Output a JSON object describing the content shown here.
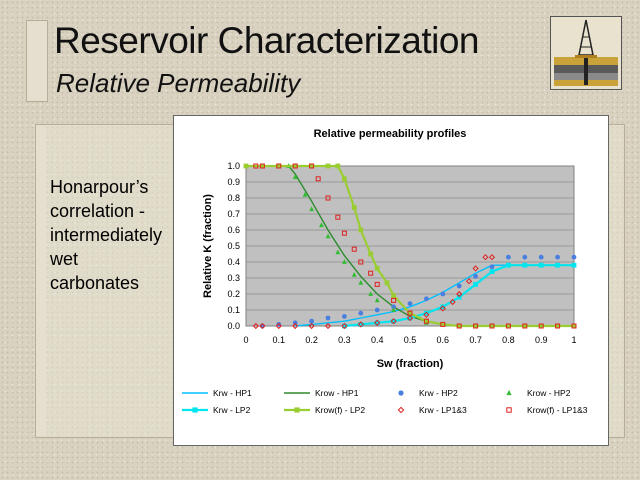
{
  "slide": {
    "title": "Reservoir Characterization",
    "subtitle": "Relative Permeability",
    "body_lines": [
      "Honarpour’s",
      "correlation -",
      "intermediately",
      "wet",
      "carbonates"
    ]
  },
  "chart_data": {
    "type": "scatter",
    "title": "Relative permeability profiles",
    "xlabel": "Sw (fraction)",
    "ylabel": "Relative K (fraction)",
    "xlim": [
      0,
      1
    ],
    "ylim": [
      0,
      1
    ],
    "x_ticks": [
      "0",
      "0.1",
      "0.2",
      "0.3",
      "0.4",
      "0.5",
      "0.6",
      "0.7",
      "0.8",
      "0.9",
      "1"
    ],
    "y_ticks": [
      "0.0",
      "0.1",
      "0.2",
      "0.3",
      "0.4",
      "0.5",
      "0.6",
      "0.7",
      "0.8",
      "0.9",
      "1.0"
    ],
    "grid": true,
    "legend_position": "bottom",
    "series": [
      {
        "name": "Krw - HP1",
        "style": "line",
        "color": "#00bfff",
        "x": [
          0.15,
          0.2,
          0.25,
          0.3,
          0.35,
          0.4,
          0.45,
          0.5,
          0.55,
          0.6,
          0.65,
          0.7,
          0.75,
          0.8,
          0.85,
          0.9,
          0.95,
          1.0
        ],
        "y": [
          0.0,
          0.01,
          0.02,
          0.03,
          0.05,
          0.07,
          0.09,
          0.12,
          0.16,
          0.21,
          0.27,
          0.33,
          0.38,
          0.38,
          0.38,
          0.38,
          0.38,
          0.38
        ]
      },
      {
        "name": "Krow - HP1",
        "style": "line",
        "color": "#2e8b2e",
        "x": [
          0.13,
          0.15,
          0.2,
          0.25,
          0.3,
          0.35,
          0.4,
          0.45,
          0.5,
          0.55,
          0.6,
          0.65,
          0.7,
          0.75,
          0.8,
          0.85,
          0.9,
          0.95,
          1.0
        ],
        "y": [
          1.0,
          0.95,
          0.78,
          0.6,
          0.44,
          0.31,
          0.2,
          0.12,
          0.06,
          0.03,
          0.01,
          0.0,
          0.0,
          0.0,
          0.0,
          0.0,
          0.0,
          0.0,
          0.0
        ]
      },
      {
        "name": "Krw - HP2",
        "style": "marker",
        "marker": "circle",
        "color": "#4a7fe0",
        "x": [
          0.05,
          0.1,
          0.15,
          0.2,
          0.25,
          0.3,
          0.35,
          0.4,
          0.45,
          0.5,
          0.55,
          0.6,
          0.65,
          0.7,
          0.75,
          0.8,
          0.85,
          0.9,
          0.95,
          1.0
        ],
        "y": [
          0.0,
          0.01,
          0.02,
          0.03,
          0.05,
          0.06,
          0.08,
          0.1,
          0.12,
          0.14,
          0.17,
          0.2,
          0.25,
          0.31,
          0.37,
          0.43,
          0.43,
          0.43,
          0.43,
          0.43
        ]
      },
      {
        "name": "Krow - HP2",
        "style": "marker",
        "marker": "triangle",
        "color": "#33bb33",
        "x": [
          0.13,
          0.15,
          0.18,
          0.2,
          0.23,
          0.25,
          0.28,
          0.3,
          0.33,
          0.35,
          0.38,
          0.4,
          0.45,
          0.5,
          0.55
        ],
        "y": [
          1.0,
          0.93,
          0.82,
          0.73,
          0.63,
          0.56,
          0.46,
          0.4,
          0.32,
          0.27,
          0.2,
          0.16,
          0.1,
          0.05,
          0.02
        ]
      },
      {
        "name": "Krw - LP2",
        "style": "line-marker",
        "marker": "square",
        "color": "#00e5ee",
        "x": [
          0.3,
          0.35,
          0.4,
          0.45,
          0.5,
          0.55,
          0.6,
          0.65,
          0.7,
          0.75,
          0.8,
          0.85,
          0.9,
          0.95,
          1.0
        ],
        "y": [
          0.0,
          0.01,
          0.02,
          0.03,
          0.05,
          0.08,
          0.12,
          0.18,
          0.26,
          0.34,
          0.38,
          0.38,
          0.38,
          0.38,
          0.38
        ]
      },
      {
        "name": "Krow(f) - LP2",
        "style": "line-marker",
        "marker": "square",
        "color": "#9acd32",
        "x": [
          0.0,
          0.05,
          0.1,
          0.15,
          0.2,
          0.25,
          0.28,
          0.3,
          0.33,
          0.35,
          0.38,
          0.4,
          0.43,
          0.45,
          0.5,
          0.55,
          0.6,
          0.65,
          0.7,
          0.75,
          0.8,
          0.85,
          0.9,
          0.95,
          1.0
        ],
        "y": [
          1.0,
          1.0,
          1.0,
          1.0,
          1.0,
          1.0,
          1.0,
          0.92,
          0.74,
          0.6,
          0.45,
          0.36,
          0.27,
          0.19,
          0.08,
          0.03,
          0.01,
          0.0,
          0.0,
          0.0,
          0.0,
          0.0,
          0.0,
          0.0,
          0.0
        ]
      },
      {
        "name": "Krw - LP1&3",
        "style": "marker",
        "marker": "diamond-open",
        "color": "#e02020",
        "x": [
          0.03,
          0.05,
          0.1,
          0.15,
          0.2,
          0.25,
          0.3,
          0.35,
          0.4,
          0.45,
          0.5,
          0.55,
          0.6,
          0.63,
          0.65,
          0.68,
          0.7,
          0.73,
          0.75
        ],
        "y": [
          0.0,
          0.0,
          0.0,
          0.0,
          0.0,
          0.0,
          0.0,
          0.01,
          0.02,
          0.03,
          0.05,
          0.07,
          0.11,
          0.15,
          0.2,
          0.28,
          0.36,
          0.43,
          0.43
        ]
      },
      {
        "name": "Krow(f) - LP1&3",
        "style": "marker",
        "marker": "square-open",
        "color": "#e02020",
        "x": [
          0.03,
          0.05,
          0.1,
          0.15,
          0.2,
          0.22,
          0.25,
          0.28,
          0.3,
          0.33,
          0.35,
          0.38,
          0.4,
          0.45,
          0.5,
          0.55,
          0.6,
          0.65,
          0.7,
          0.75,
          0.8,
          0.85,
          0.9,
          0.95,
          1.0
        ],
        "y": [
          1.0,
          1.0,
          1.0,
          1.0,
          1.0,
          0.92,
          0.8,
          0.68,
          0.58,
          0.48,
          0.4,
          0.33,
          0.26,
          0.16,
          0.08,
          0.03,
          0.01,
          0.0,
          0.0,
          0.0,
          0.0,
          0.0,
          0.0,
          0.0,
          0.0
        ]
      }
    ]
  }
}
